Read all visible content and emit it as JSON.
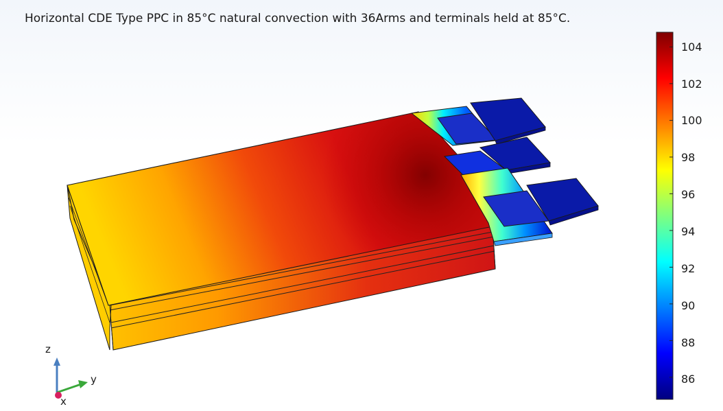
{
  "plot": {
    "title": "Horizontal CDE Type PPC in 85°C natural convection with 36Arms and terminals held at 85°C."
  },
  "colorbar": {
    "ticks": [
      "104",
      "102",
      "100",
      "98",
      "96",
      "94",
      "92",
      "90",
      "88",
      "86"
    ],
    "colors": [
      "#00007f",
      "#0000ff",
      "#00ffff",
      "#ffff00",
      "#ff0000",
      "#7f0000"
    ],
    "range": [
      84.8,
      104.8
    ]
  },
  "triad": {
    "z_label": "z",
    "y_label": "y",
    "x_label": "x"
  }
}
